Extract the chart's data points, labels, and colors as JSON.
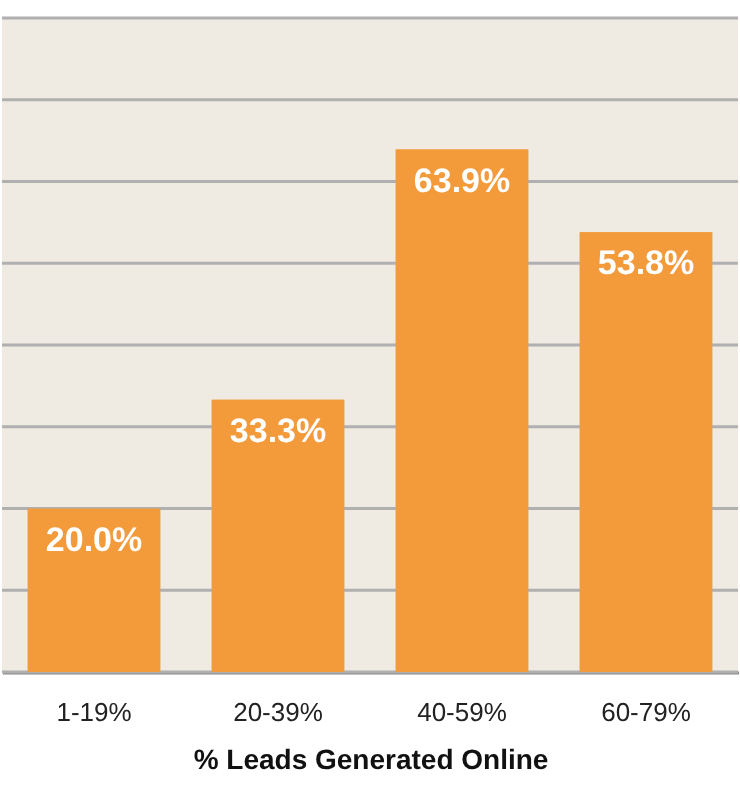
{
  "chart_data": {
    "type": "bar",
    "categories": [
      "1-19%",
      "20-39%",
      "40-59%",
      "60-79%"
    ],
    "values": [
      20.0,
      33.3,
      63.9,
      53.8
    ],
    "value_labels": [
      "20.0%",
      "33.3%",
      "63.9%",
      "53.8%"
    ],
    "color": "#f39a3b",
    "xlabel": "% Leads Generated Online",
    "ylim": [
      0,
      80
    ],
    "yticks": [
      {
        "value": 0,
        "label": null
      },
      {
        "value": 10,
        "label": null
      },
      {
        "value": 20,
        "label": null
      },
      {
        "value": 30,
        "label": null
      },
      {
        "value": 40,
        "label": null
      },
      {
        "value": 50,
        "label": null
      },
      {
        "value": 60,
        "label": null
      },
      {
        "value": 70,
        "label": null
      },
      {
        "value": 80,
        "label": null
      }
    ],
    "grid": "y",
    "tick_labels": "x"
  }
}
